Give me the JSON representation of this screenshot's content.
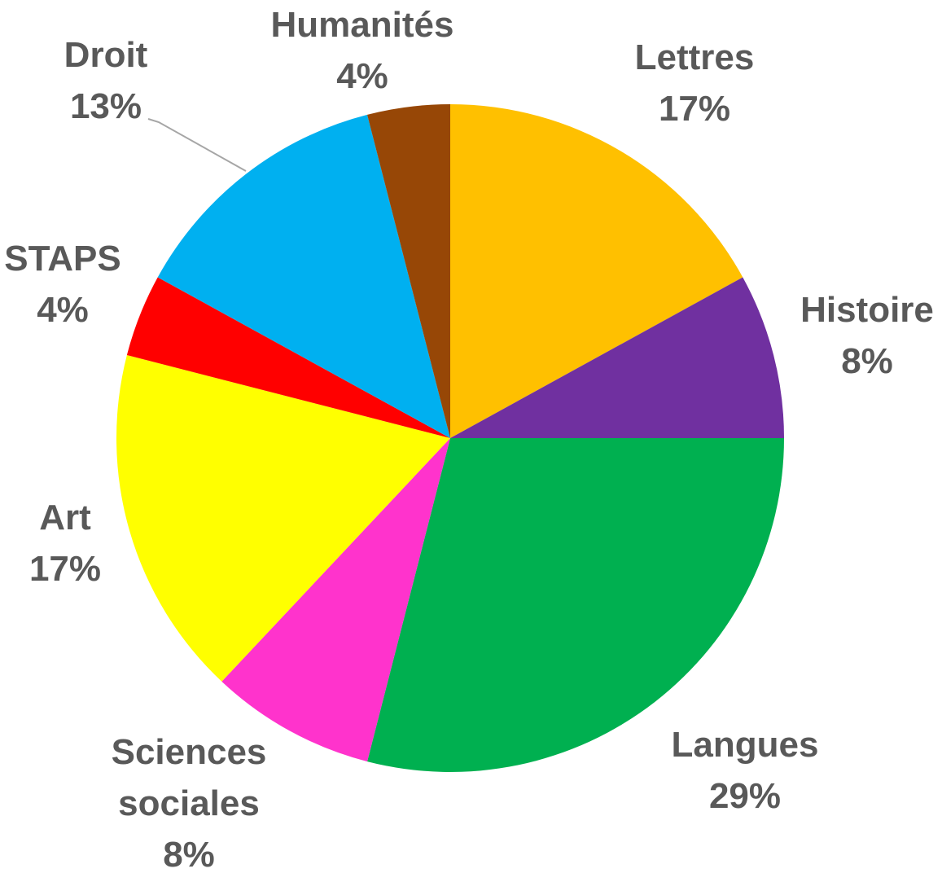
{
  "chart_data": {
    "type": "pie",
    "start_angle_deg": 0,
    "direction": "clockwise",
    "legend": "none",
    "slices": [
      {
        "label": "Lettres",
        "value": 17,
        "value_label": "17%",
        "color": "#FFC000"
      },
      {
        "label": "Histoire",
        "value": 8,
        "value_label": "8%",
        "color": "#7030A0"
      },
      {
        "label": "Langues",
        "value": 29,
        "value_label": "29%",
        "color": "#00B050"
      },
      {
        "label": "Sciences sociales",
        "label_lines": [
          "Sciences",
          "sociales"
        ],
        "value": 8,
        "value_label": "8%",
        "color": "#FF33CC"
      },
      {
        "label": "Art",
        "value": 17,
        "value_label": "17%",
        "color": "#FFFF00"
      },
      {
        "label": "STAPS",
        "value": 4,
        "value_label": "4%",
        "color": "#FF0000"
      },
      {
        "label": "Droit",
        "value": 13,
        "value_label": "13%",
        "color": "#00B0F0"
      },
      {
        "label": "Humanités",
        "value": 4,
        "value_label": "4%",
        "color": "#974706"
      }
    ]
  }
}
